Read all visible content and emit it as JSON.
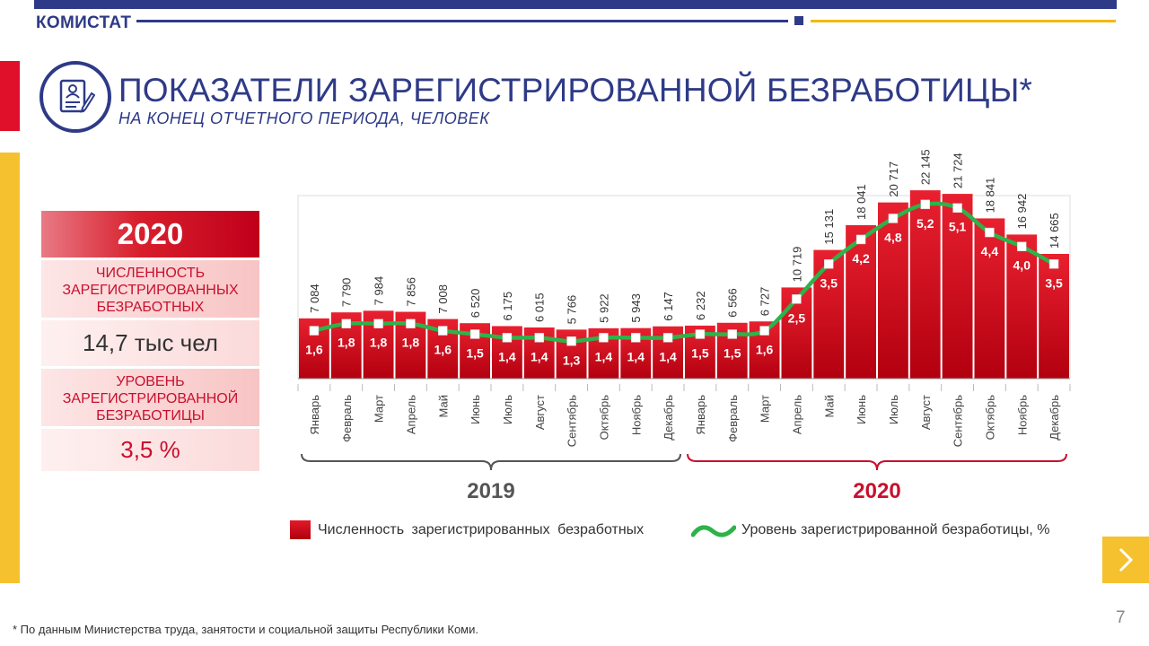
{
  "header": {
    "brand": "КОМИСТАТ",
    "title": "ПОКАЗАТЕЛИ ЗАРЕГИСТРИРОВАННОЙ БЕЗРАБОТИЦЫ*",
    "subtitle": "НА КОНЕЦ ОТЧЕТНОГО ПЕРИОДА, ЧЕЛОВЕК",
    "logo_icon": "document-person-icon"
  },
  "summary": {
    "year": "2020",
    "count_label": "ЧИСЛЕННОСТЬ ЗАРЕГИСТРИРОВАННЫХ БЕЗРАБОТНЫХ",
    "count_value": "14,7 тыс чел",
    "rate_label": "УРОВЕНЬ ЗАРЕГИСТРИРОВАННОЙ БЕЗРАБОТИЦЫ",
    "rate_value": "3,5 %"
  },
  "chart_data": {
    "type": "bar",
    "categories": [
      "Январь",
      "Февраль",
      "Март",
      "Апрель",
      "Май",
      "Июнь",
      "Июль",
      "Август",
      "Сентябрь",
      "Октябрь",
      "Ноябрь",
      "Декабрь",
      "Январь",
      "Февраль",
      "Март",
      "Апрель",
      "Май",
      "Июнь",
      "Июль",
      "Август",
      "Сентябрь",
      "Октябрь",
      "Ноябрь",
      "Декабрь"
    ],
    "series": [
      {
        "name": "Численность зарегистрированных безработных",
        "type": "bar",
        "color": "#cf0a1c",
        "values": [
          7084,
          7790,
          7984,
          7856,
          7008,
          6520,
          6175,
          6015,
          5766,
          5922,
          5943,
          6147,
          6232,
          6566,
          6727,
          10719,
          15131,
          18041,
          20717,
          22145,
          21724,
          18841,
          16942,
          14665
        ],
        "labels": [
          "7 084",
          "7 790",
          "7 984",
          "7 856",
          "7 008",
          "6 520",
          "6 175",
          "6 015",
          "5 766",
          "5 922",
          "5 943",
          "6 147",
          "6 232",
          "6 566",
          "6 727",
          "10 719",
          "15 131",
          "18 041",
          "20 717",
          "22 145",
          "21 724",
          "18 841",
          "16 942",
          "14 665"
        ]
      },
      {
        "name": "Уровень зарегистрированной безработицы, %",
        "type": "line",
        "color": "#2db34a",
        "values": [
          1.6,
          1.8,
          1.8,
          1.8,
          1.6,
          1.5,
          1.4,
          1.4,
          1.3,
          1.4,
          1.4,
          1.4,
          1.5,
          1.5,
          1.6,
          2.5,
          3.5,
          4.2,
          4.8,
          5.2,
          5.1,
          4.4,
          4.0,
          3.5
        ],
        "labels": [
          "1,6",
          "1,8",
          "1,8",
          "1,8",
          "1,6",
          "1,5",
          "1,4",
          "1,4",
          "1,3",
          "1,4",
          "1,4",
          "1,4",
          "1,5",
          "1,5",
          "1,6",
          "2,5",
          "3,5",
          "4,2",
          "4,8",
          "5,2",
          "5,1",
          "4,4",
          "4,0",
          "3,5"
        ]
      }
    ],
    "groups": [
      {
        "label": "2019",
        "from": 0,
        "to": 11,
        "color": "#555555"
      },
      {
        "label": "2020",
        "from": 12,
        "to": 23,
        "color": "#c8102e"
      }
    ],
    "bar_ylim": [
      0,
      23000
    ],
    "line_ylim": [
      0,
      5.4
    ]
  },
  "legend": {
    "bars_label": "Численность зарегистрированных безработных",
    "line_label": "Уровень зарегистрированной безработицы, %"
  },
  "footer": {
    "footnote": "* По данным Министерства труда, занятости и социальной защиты Республики Коми.",
    "page_number": "7",
    "next_icon": "chevron-right-icon"
  }
}
